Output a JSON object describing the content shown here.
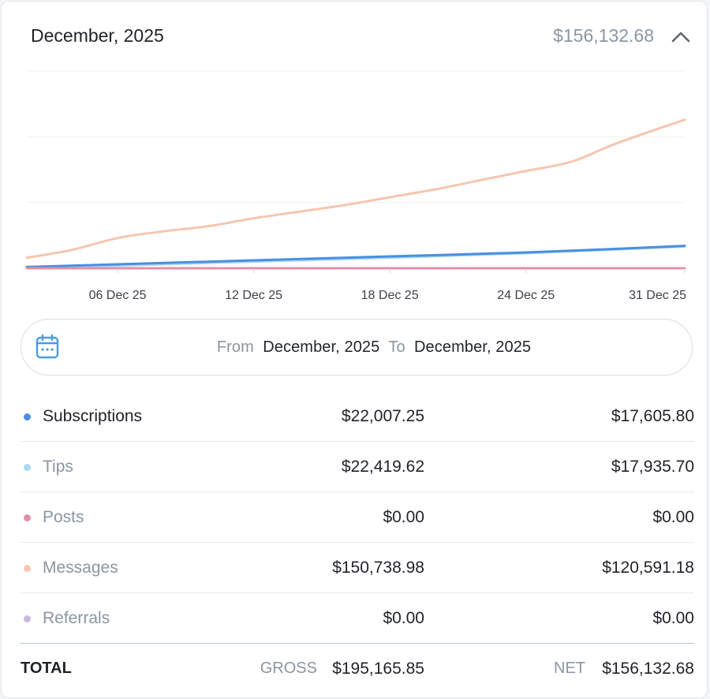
{
  "header": {
    "title": "December, 2025",
    "total": "$156,132.68",
    "collapse_icon": "chevron-up-icon"
  },
  "chart_data": {
    "type": "line",
    "title": "",
    "xlabel": "",
    "ylabel": "",
    "grid": true,
    "x_tick_labels": [
      "06 Dec 25",
      "12 Dec 25",
      "18 Dec 25",
      "24 Dec 25",
      "31 Dec 25"
    ],
    "x_tick_days": [
      6,
      12,
      18,
      24,
      31
    ],
    "xlim": [
      2,
      31
    ],
    "ylim": [
      0,
      150000
    ],
    "series": [
      {
        "key": "messages",
        "color": "#f6c5b0",
        "points": [
          [
            2,
            8000
          ],
          [
            4,
            14000
          ],
          [
            6,
            23000
          ],
          [
            8,
            28000
          ],
          [
            10,
            32000
          ],
          [
            12,
            38000
          ],
          [
            14,
            43000
          ],
          [
            16,
            48000
          ],
          [
            18,
            54000
          ],
          [
            20,
            60000
          ],
          [
            22,
            67000
          ],
          [
            24,
            74000
          ],
          [
            26,
            81000
          ],
          [
            28,
            95000
          ],
          [
            31,
            113000
          ]
        ]
      },
      {
        "key": "tips",
        "color": "#a9d8f0",
        "points": [
          [
            2,
            500
          ],
          [
            6,
            2000
          ],
          [
            12,
            5000
          ],
          [
            18,
            8000
          ],
          [
            24,
            11500
          ],
          [
            31,
            16500
          ]
        ]
      },
      {
        "key": "subscriptions",
        "color": "#4a8fe0",
        "points": [
          [
            2,
            1000
          ],
          [
            6,
            3000
          ],
          [
            12,
            6000
          ],
          [
            18,
            9000
          ],
          [
            24,
            12000
          ],
          [
            31,
            17000
          ]
        ]
      },
      {
        "key": "posts",
        "color": "#e38fa9",
        "points": [
          [
            2,
            0
          ],
          [
            31,
            0
          ]
        ]
      }
    ]
  },
  "date_range": {
    "icon": "calendar-icon",
    "from_label": "From",
    "from_value": "December, 2025",
    "to_label": "To",
    "to_value": "December, 2025"
  },
  "rows": [
    {
      "label": "Subscriptions",
      "gross": "$22,007.25",
      "net": "$17,605.80",
      "color": "#4a8fe0",
      "active": true
    },
    {
      "label": "Tips",
      "gross": "$22,419.62",
      "net": "$17,935.70",
      "color": "#a9d8f0",
      "active": false
    },
    {
      "label": "Posts",
      "gross": "$0.00",
      "net": "$0.00",
      "color": "#e38fa9",
      "active": false
    },
    {
      "label": "Messages",
      "gross": "$150,738.98",
      "net": "$120,591.18",
      "color": "#f6c5b0",
      "active": false
    },
    {
      "label": "Referrals",
      "gross": "$0.00",
      "net": "$0.00",
      "color": "#c8b8de",
      "active": false
    }
  ],
  "totals": {
    "label": "TOTAL",
    "gross_caption": "GROSS",
    "gross_value": "$195,165.85",
    "net_caption": "NET",
    "net_value": "$156,132.68"
  }
}
